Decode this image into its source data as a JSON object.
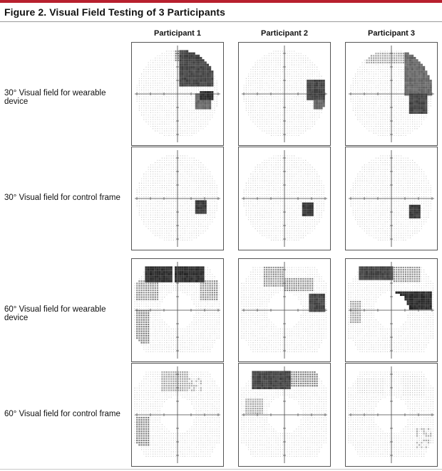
{
  "figure": {
    "title": "Figure 2. Visual Field Testing of 3 Participants",
    "accent_color": "#b8202e",
    "columns": [
      "Participant 1",
      "Participant 2",
      "Participant 3"
    ],
    "rows": [
      {
        "label": "30° Visual field for wearable device",
        "field": 30
      },
      {
        "label": "30° Visual field for control frame",
        "field": 30
      },
      {
        "label": "60° Visual field for wearable device",
        "field": 60
      },
      {
        "label": "60° Visual field for control frame",
        "field": 60
      }
    ]
  }
}
